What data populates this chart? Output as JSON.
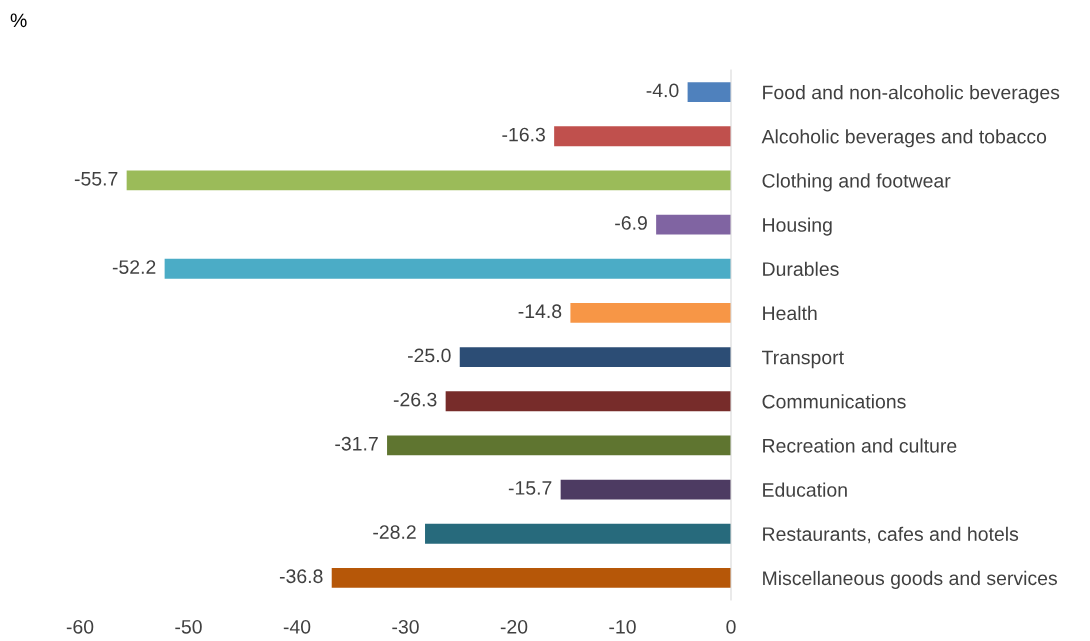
{
  "chart_data": {
    "type": "bar",
    "orientation": "horizontal",
    "ylabel": "%",
    "categories": [
      "Food and non-alcoholic beverages",
      "Alcoholic beverages and tobacco",
      "Clothing and footwear",
      "Housing",
      "Durables",
      "Health",
      "Transport",
      "Communications",
      "Recreation and culture",
      "Education",
      "Restaurants, cafes and hotels",
      "Miscellaneous goods and services"
    ],
    "values": [
      -4.0,
      -16.3,
      -55.7,
      -6.9,
      -52.2,
      -14.8,
      -25.0,
      -26.3,
      -31.7,
      -15.7,
      -28.2,
      -36.8
    ],
    "value_labels": [
      "-4.0",
      "-16.3",
      "-55.7",
      "-6.9",
      "-52.2",
      "-14.8",
      "-25.0",
      "-26.3",
      "-31.7",
      "-15.7",
      "-28.2",
      "-36.8"
    ],
    "colors": [
      "#4f81bd",
      "#c0504d",
      "#9bbb59",
      "#8064a2",
      "#4bacc6",
      "#f79646",
      "#2c4d75",
      "#772c2a",
      "#5f7530",
      "#4d3b62",
      "#276a7c",
      "#b65708"
    ],
    "xlim": [
      -60,
      0
    ],
    "xticks": [
      -60,
      -50,
      -40,
      -30,
      -20,
      -10,
      0
    ],
    "grid": false,
    "legend": false
  }
}
